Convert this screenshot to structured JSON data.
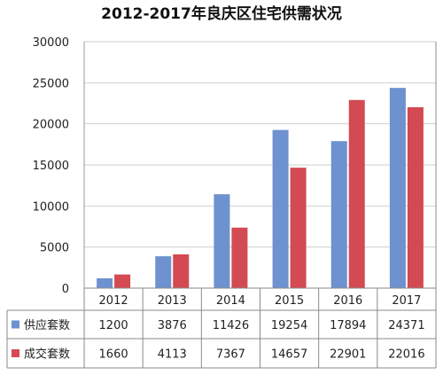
{
  "chart_data": {
    "type": "bar",
    "title": "2012-2017年良庆区住宅供需状况",
    "categories": [
      "2012",
      "2013",
      "2014",
      "2015",
      "2016",
      "2017"
    ],
    "series": [
      {
        "name": "供应套数",
        "values": [
          1200,
          3876,
          11426,
          19254,
          17894,
          24371
        ],
        "color": "#6e92cf"
      },
      {
        "name": "成交套数",
        "values": [
          1660,
          4113,
          7367,
          14657,
          22901,
          22016
        ],
        "color": "#d34a52"
      }
    ],
    "ylim": [
      0,
      30000
    ],
    "yticks": [
      0,
      5000,
      10000,
      15000,
      20000,
      25000,
      30000
    ],
    "grid": true,
    "legend": "data-table"
  }
}
